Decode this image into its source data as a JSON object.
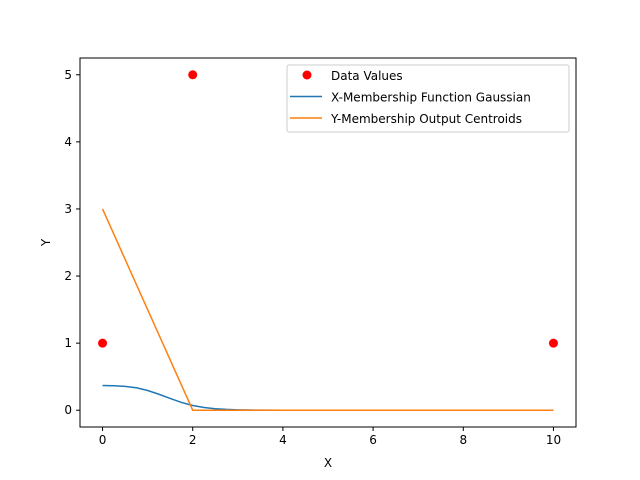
{
  "chart_data": {
    "type": "line",
    "title": "",
    "xlabel": "X",
    "ylabel": "Y",
    "xlim": [
      -0.5,
      10.5
    ],
    "ylim": [
      -0.25,
      5.25
    ],
    "xticks": [
      0,
      2,
      4,
      6,
      8,
      10
    ],
    "yticks": [
      0,
      1,
      2,
      3,
      4,
      5
    ],
    "xtick_labels": [
      "0",
      "2",
      "4",
      "6",
      "8",
      "10"
    ],
    "ytick_labels": [
      "0",
      "1",
      "2",
      "3",
      "4",
      "5"
    ],
    "grid": false,
    "legend_position": "top-right",
    "scatter": {
      "name": "Data Values",
      "color": "#ff0000",
      "x": [
        0,
        2,
        10
      ],
      "y": [
        1,
        5,
        1
      ]
    },
    "series": [
      {
        "name": "X-Membership Function Gaussian",
        "color": "#1f77b4",
        "x": [
          0,
          0.25,
          0.5,
          0.75,
          1,
          1.25,
          1.5,
          1.75,
          2,
          2.25,
          2.5,
          2.75,
          3,
          3.25,
          3.5,
          4,
          5,
          6,
          7,
          8,
          9,
          10
        ],
        "y": [
          0.368,
          0.365,
          0.356,
          0.335,
          0.294,
          0.238,
          0.176,
          0.116,
          0.07,
          0.04,
          0.022,
          0.012,
          0.006,
          0.003,
          0.001,
          0,
          0,
          0,
          0,
          0,
          0,
          0
        ]
      },
      {
        "name": "Y-Membership Output Centroids",
        "color": "#ff7f0e",
        "x": [
          0,
          2,
          10
        ],
        "y": [
          3,
          0,
          0
        ]
      }
    ]
  }
}
